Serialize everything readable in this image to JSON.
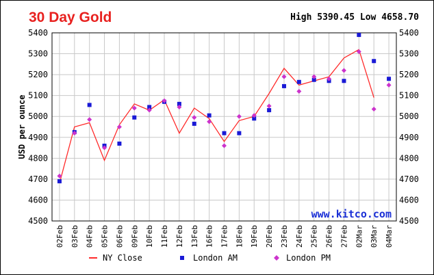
{
  "header": {
    "title": "30 Day Gold",
    "high_label": "High",
    "high_value": "5390.45",
    "low_label": "Low",
    "low_value": "4658.70"
  },
  "watermark": "www.kitco.com",
  "colors": {
    "title": "#e8211f",
    "ny_close": "#ff2a2a",
    "london_am": "#1a1ad6",
    "london_pm": "#cc33cc",
    "grid": "#c8c8c8",
    "watermark": "#1a2fd6"
  },
  "chart_data": {
    "type": "line",
    "title": "30 Day Gold",
    "xlabel": "",
    "ylabel": "USD per ounce",
    "ylim": [
      4500,
      5400
    ],
    "yticks": [
      4500,
      4600,
      4700,
      4800,
      4900,
      5000,
      5100,
      5200,
      5300,
      5400
    ],
    "grid": true,
    "legend_position": "bottom",
    "categories": [
      "02Feb",
      "03Feb",
      "04Feb",
      "05Feb",
      "06Feb",
      "09Feb",
      "10Feb",
      "11Feb",
      "12Feb",
      "13Feb",
      "16Feb",
      "17Feb",
      "18Feb",
      "19Feb",
      "20Feb",
      "23Feb",
      "24Feb",
      "25Feb",
      "26Feb",
      "27Feb",
      "02Mar",
      "03Mar",
      "04Mar"
    ],
    "series": [
      {
        "name": "NY Close",
        "kind": "line",
        "values": [
          4680,
          4950,
          4970,
          4790,
          4960,
          5060,
          5030,
          5080,
          4920,
          5040,
          4990,
          4880,
          4980,
          5000,
          5110,
          5230,
          5150,
          5170,
          5190,
          5280,
          5320,
          5090,
          null
        ]
      },
      {
        "name": "London AM",
        "kind": "square",
        "values": [
          4690,
          4925,
          5055,
          4860,
          4870,
          4995,
          5045,
          5070,
          5060,
          4965,
          5005,
          4920,
          4920,
          4990,
          5030,
          5145,
          5165,
          5175,
          5170,
          5170,
          5390,
          5265,
          5180
        ]
      },
      {
        "name": "London PM",
        "kind": "diamond",
        "values": [
          4715,
          4920,
          4985,
          4850,
          4950,
          5040,
          5030,
          5075,
          5045,
          4995,
          4975,
          4860,
          5000,
          5005,
          5050,
          5190,
          5120,
          5190,
          5180,
          5220,
          5310,
          5035,
          5150
        ]
      }
    ]
  }
}
